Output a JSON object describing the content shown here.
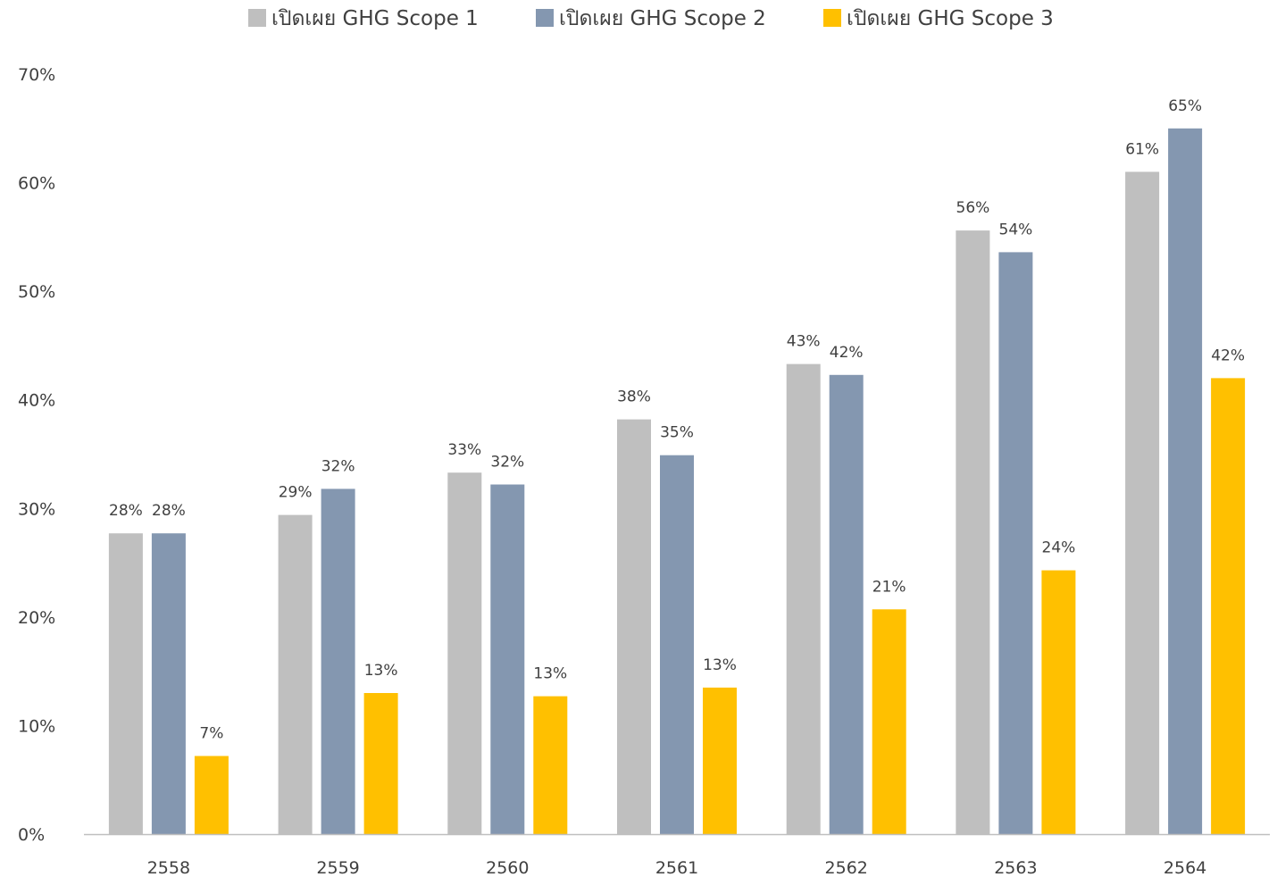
{
  "chart_data": {
    "type": "bar",
    "title": "",
    "xlabel": "",
    "ylabel": "",
    "categories": [
      "2558",
      "2559",
      "2560",
      "2561",
      "2562",
      "2563",
      "2564"
    ],
    "series": [
      {
        "name": "เปิดเผย GHG Scope 1",
        "color": "#bfbfbf",
        "values": [
          27.7,
          29.4,
          33.3,
          38.2,
          43.3,
          55.6,
          61.0
        ],
        "labels": [
          "28%",
          "29%",
          "33%",
          "38%",
          "43%",
          "56%",
          "61%"
        ]
      },
      {
        "name": "เปิดเผย GHG Scope 2",
        "color": "#8497b0",
        "values": [
          27.7,
          31.8,
          32.2,
          34.9,
          42.3,
          53.6,
          65.0
        ],
        "labels": [
          "28%",
          "32%",
          "32%",
          "35%",
          "42%",
          "54%",
          "65%"
        ]
      },
      {
        "name": "เปิดเผย GHG Scope 3",
        "color": "#ffc000",
        "values": [
          7.2,
          13.0,
          12.7,
          13.5,
          20.7,
          24.3,
          42.0
        ],
        "labels": [
          "7%",
          "13%",
          "13%",
          "13%",
          "21%",
          "24%",
          "42%"
        ]
      }
    ],
    "ylim": [
      0,
      70
    ],
    "yticks": [
      0,
      10,
      20,
      30,
      40,
      50,
      60,
      70
    ],
    "ytick_labels": [
      "0%",
      "10%",
      "20%",
      "30%",
      "40%",
      "50%",
      "60%",
      "70%"
    ],
    "legend": "top",
    "grid": false,
    "axis_color": "#bfbfbf"
  }
}
